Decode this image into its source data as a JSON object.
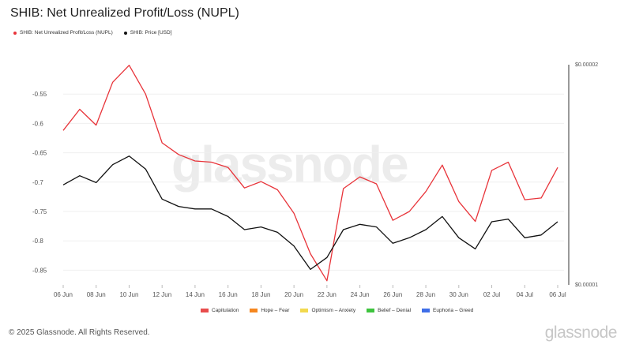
{
  "header": {
    "title": "SHIB: Net Unrealized Profit/Loss (NUPL)"
  },
  "legend_top": [
    {
      "label": "SHIB: Net Unrealized Profit/Loss (NUPL)",
      "color": "#e8343a"
    },
    {
      "label": "SHIB: Price [USD]",
      "color": "#111111"
    }
  ],
  "legend_bottom": [
    {
      "label": "Capitulation",
      "color": "#e84c4c"
    },
    {
      "label": "Hope – Fear",
      "color": "#f5871f"
    },
    {
      "label": "Optimism – Anxiety",
      "color": "#f2d94e"
    },
    {
      "label": "Belief – Denial",
      "color": "#3ec43e"
    },
    {
      "label": "Euphoria – Greed",
      "color": "#3f6ee8"
    }
  ],
  "watermark": "glassnode",
  "footer": {
    "copyright": "© 2025 Glassnode. All Rights Reserved.",
    "brand": "glassnode"
  },
  "chart_data": {
    "type": "line",
    "x": [
      "06 Jun",
      "07 Jun",
      "08 Jun",
      "09 Jun",
      "10 Jun",
      "11 Jun",
      "12 Jun",
      "13 Jun",
      "14 Jun",
      "15 Jun",
      "16 Jun",
      "17 Jun",
      "18 Jun",
      "19 Jun",
      "20 Jun",
      "21 Jun",
      "22 Jun",
      "23 Jun",
      "24 Jun",
      "25 Jun",
      "26 Jun",
      "27 Jun",
      "28 Jun",
      "29 Jun",
      "30 Jun",
      "01 Jul",
      "02 Jul",
      "03 Jul",
      "04 Jul",
      "05 Jul",
      "06 Jul"
    ],
    "x_tick_labels": [
      "06 Jun",
      "08 Jun",
      "10 Jun",
      "12 Jun",
      "14 Jun",
      "16 Jun",
      "18 Jun",
      "20 Jun",
      "22 Jun",
      "24 Jun",
      "26 Jun",
      "28 Jun",
      "30 Jun",
      "02 Jul",
      "04 Jul",
      "06 Jul"
    ],
    "series": [
      {
        "name": "SHIB: Net Unrealized Profit/Loss (NUPL)",
        "color": "#e8343a",
        "axis": "left",
        "values": [
          -0.612,
          -0.576,
          -0.603,
          -0.53,
          -0.501,
          -0.55,
          -0.633,
          -0.653,
          -0.664,
          -0.666,
          -0.675,
          -0.71,
          -0.699,
          -0.713,
          -0.753,
          -0.822,
          -0.868,
          -0.711,
          -0.691,
          -0.703,
          -0.765,
          -0.75,
          -0.716,
          -0.671,
          -0.733,
          -0.767,
          -0.68,
          -0.666,
          -0.73,
          -0.727,
          -0.675
        ]
      },
      {
        "name": "SHIB: Price [USD]",
        "color": "#111111",
        "axis": "right",
        "values": [
          1.37e-05,
          1.41e-05,
          1.38e-05,
          1.46e-05,
          1.5e-05,
          1.44e-05,
          1.31e-05,
          1.28e-05,
          1.27e-05,
          1.27e-05,
          1.24e-05,
          1.19e-05,
          1.2e-05,
          1.18e-05,
          1.13e-05,
          1.05e-05,
          1.09e-05,
          1.19e-05,
          1.21e-05,
          1.2e-05,
          1.14e-05,
          1.16e-05,
          1.19e-05,
          1.24e-05,
          1.16e-05,
          1.12e-05,
          1.22e-05,
          1.23e-05,
          1.16e-05,
          1.17e-05,
          1.22e-05
        ]
      }
    ],
    "y_left": {
      "ticks": [
        -0.55,
        -0.6,
        -0.65,
        -0.7,
        -0.75,
        -0.8,
        -0.85
      ],
      "tick_labels": [
        "-0.55",
        "-0.6",
        "-0.65",
        "-0.7",
        "-0.75",
        "-0.8",
        "-0.85"
      ],
      "range": [
        -0.875,
        -0.5
      ]
    },
    "y_right": {
      "scale": "log",
      "tick_labels": [
        "$0.00002",
        "$0.00001"
      ],
      "range": [
        1e-05,
        2e-05
      ]
    },
    "grid": true
  }
}
